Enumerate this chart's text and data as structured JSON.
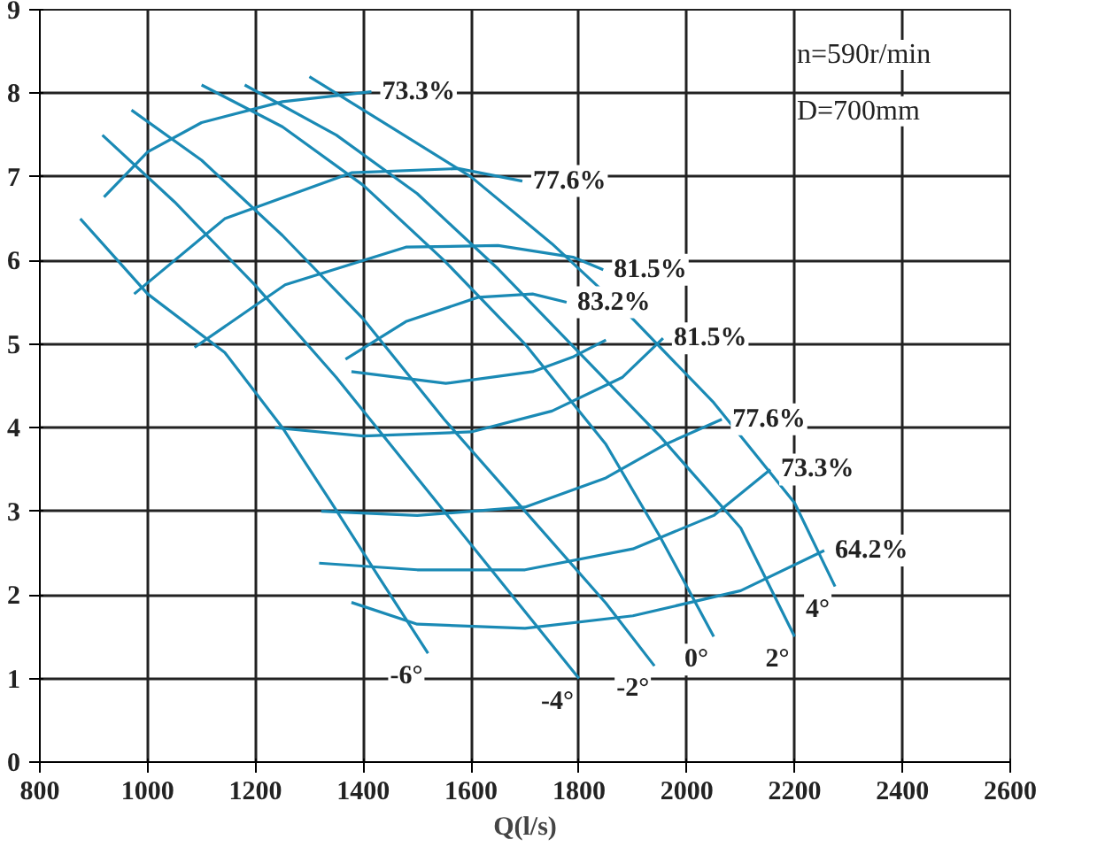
{
  "chart_data": {
    "type": "line",
    "xlabel": "Q(l/s)",
    "xlim": [
      800,
      2600
    ],
    "ylim": [
      0,
      9
    ],
    "xticks": [
      800,
      1000,
      1200,
      1400,
      1600,
      1800,
      2000,
      2200,
      2400,
      2600
    ],
    "yticks": [
      0,
      1,
      2,
      3,
      4,
      5,
      6,
      7,
      8,
      9
    ],
    "grid": true,
    "marker": "none",
    "line_style": "solid",
    "annotations": [
      "n=590r/min",
      "D=700mm"
    ],
    "series": [
      {
        "name": "-6°",
        "color": "#1a8ab5",
        "x": [
          875,
          1000,
          1143,
          1250,
          1341,
          1430,
          1520
        ],
        "values": [
          6.5,
          5.6,
          4.9,
          4.0,
          3.1,
          2.2,
          1.3
        ]
      },
      {
        "name": "-4°",
        "color": "#1a8ab5",
        "x": [
          916,
          1050,
          1200,
          1350,
          1500,
          1650,
          1800
        ],
        "values": [
          7.5,
          6.7,
          5.7,
          4.6,
          3.4,
          2.2,
          1.0
        ]
      },
      {
        "name": "-2°",
        "color": "#1a8ab5",
        "x": [
          970,
          1100,
          1250,
          1400,
          1550,
          1700,
          1850,
          1940
        ],
        "values": [
          7.8,
          7.2,
          6.3,
          5.3,
          4.1,
          3.0,
          1.9,
          1.15
        ]
      },
      {
        "name": "0°",
        "color": "#1a8ab5",
        "x": [
          1100,
          1250,
          1400,
          1550,
          1700,
          1850,
          1950,
          2050
        ],
        "values": [
          8.1,
          7.6,
          6.9,
          6.0,
          5.0,
          3.8,
          2.7,
          1.5
        ]
      },
      {
        "name": "2°",
        "color": "#1a8ab5",
        "x": [
          1180,
          1350,
          1500,
          1650,
          1800,
          1950,
          2100,
          2200
        ],
        "values": [
          8.1,
          7.5,
          6.8,
          5.9,
          4.9,
          3.9,
          2.8,
          1.5
        ]
      },
      {
        "name": "4°",
        "color": "#1a8ab5",
        "x": [
          1300,
          1450,
          1600,
          1750,
          1900,
          2050,
          2200,
          2275
        ],
        "values": [
          8.2,
          7.6,
          7.0,
          6.2,
          5.3,
          4.3,
          3.1,
          2.1
        ]
      },
      {
        "name": "73.3%",
        "color": "#1a8ab5",
        "x": [
          919,
          1000,
          1100,
          1250,
          1415
        ],
        "values": [
          6.76,
          7.3,
          7.65,
          7.9,
          8.02
        ]
      },
      {
        "name": "77.6%",
        "color": "#1a8ab5",
        "x": [
          975,
          1143,
          1378,
          1576,
          1695
        ],
        "values": [
          5.6,
          6.5,
          7.05,
          7.1,
          6.95
        ]
      },
      {
        "name": "81.5%",
        "color": "#1a8ab5",
        "x": [
          1087,
          1255,
          1479,
          1650,
          1789,
          1845
        ],
        "values": [
          4.96,
          5.71,
          6.16,
          6.18,
          6.04,
          5.89
        ]
      },
      {
        "name": "83.2%",
        "color": "#1a8ab5",
        "x": [
          1367,
          1479,
          1613,
          1714,
          1777
        ],
        "values": [
          4.82,
          5.27,
          5.56,
          5.6,
          5.5
        ]
      },
      {
        "color": "#1a8ab5",
        "x": [
          1378,
          1553,
          1714,
          1790,
          1850
        ],
        "values": [
          4.67,
          4.53,
          4.67,
          4.85,
          5.05
        ]
      },
      {
        "name": "81.5%",
        "color": "#1a8ab5",
        "x": [
          1236,
          1400,
          1600,
          1750,
          1880,
          1956
        ],
        "values": [
          4.0,
          3.9,
          3.95,
          4.2,
          4.6,
          5.07
        ]
      },
      {
        "name": "77.6%",
        "color": "#1a8ab5",
        "x": [
          1322,
          1500,
          1700,
          1850,
          1960,
          2065
        ],
        "values": [
          3.0,
          2.95,
          3.05,
          3.4,
          3.8,
          4.1
        ]
      },
      {
        "name": "73.3%",
        "color": "#1a8ab5",
        "x": [
          1318,
          1500,
          1700,
          1900,
          2050,
          2155
        ],
        "values": [
          2.38,
          2.3,
          2.3,
          2.55,
          2.95,
          3.5
        ]
      },
      {
        "name": "64.2%",
        "color": "#1a8ab5",
        "x": [
          1378,
          1500,
          1700,
          1900,
          2100,
          2255
        ],
        "values": [
          1.91,
          1.65,
          1.6,
          1.75,
          2.05,
          2.53
        ]
      }
    ]
  }
}
